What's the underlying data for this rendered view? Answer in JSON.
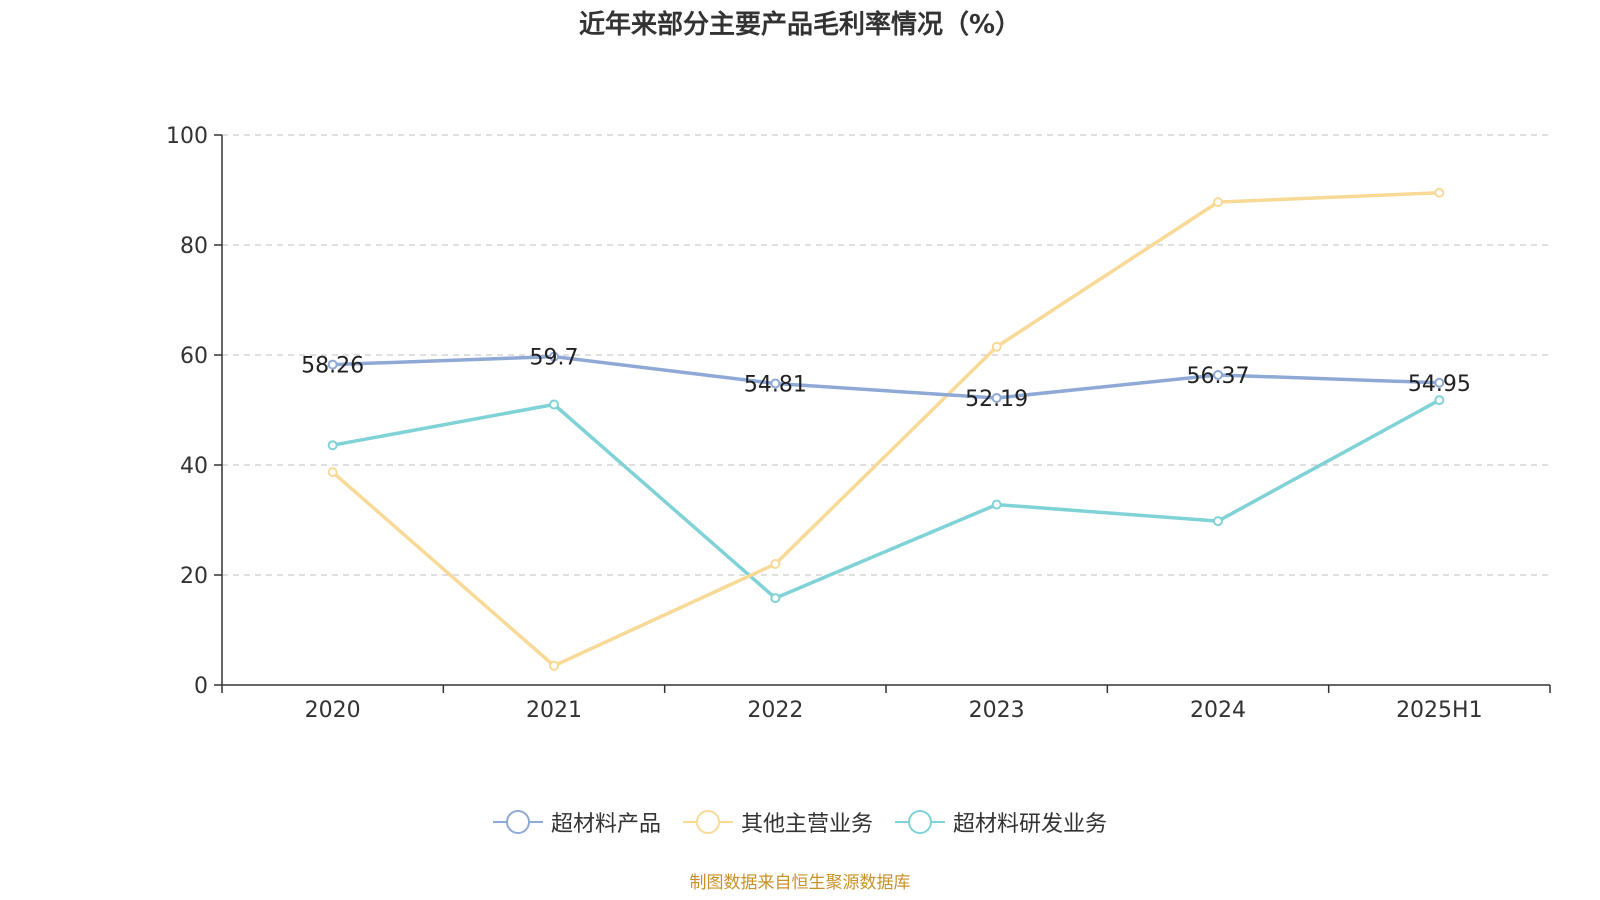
{
  "title": "近年来部分主要产品毛利率情况（%）",
  "source": "制图数据来自恒生聚源数据库",
  "chart_data": {
    "type": "line",
    "title": "近年来部分主要产品毛利率情况（%）",
    "categories": [
      "2020",
      "2021",
      "2022",
      "2023",
      "2024",
      "2025H1"
    ],
    "ylim": [
      0,
      100
    ],
    "yticks": [
      0,
      20,
      40,
      60,
      80,
      100
    ],
    "grid": true,
    "legend_position": "bottom",
    "series": [
      {
        "name": "超材料产品",
        "color": "#8fa9d6",
        "values": [
          58.26,
          59.7,
          54.81,
          52.19,
          56.37,
          54.95
        ],
        "show_labels": true
      },
      {
        "name": "其他主营业务",
        "color": "#f8d996",
        "values": [
          38.7,
          3.5,
          22.0,
          61.5,
          87.8,
          89.5
        ],
        "show_labels": false
      },
      {
        "name": "超材料研发业务",
        "color": "#7fd2d6",
        "values": [
          43.6,
          51.0,
          15.8,
          32.8,
          29.8,
          51.8
        ],
        "show_labels": false
      }
    ]
  }
}
